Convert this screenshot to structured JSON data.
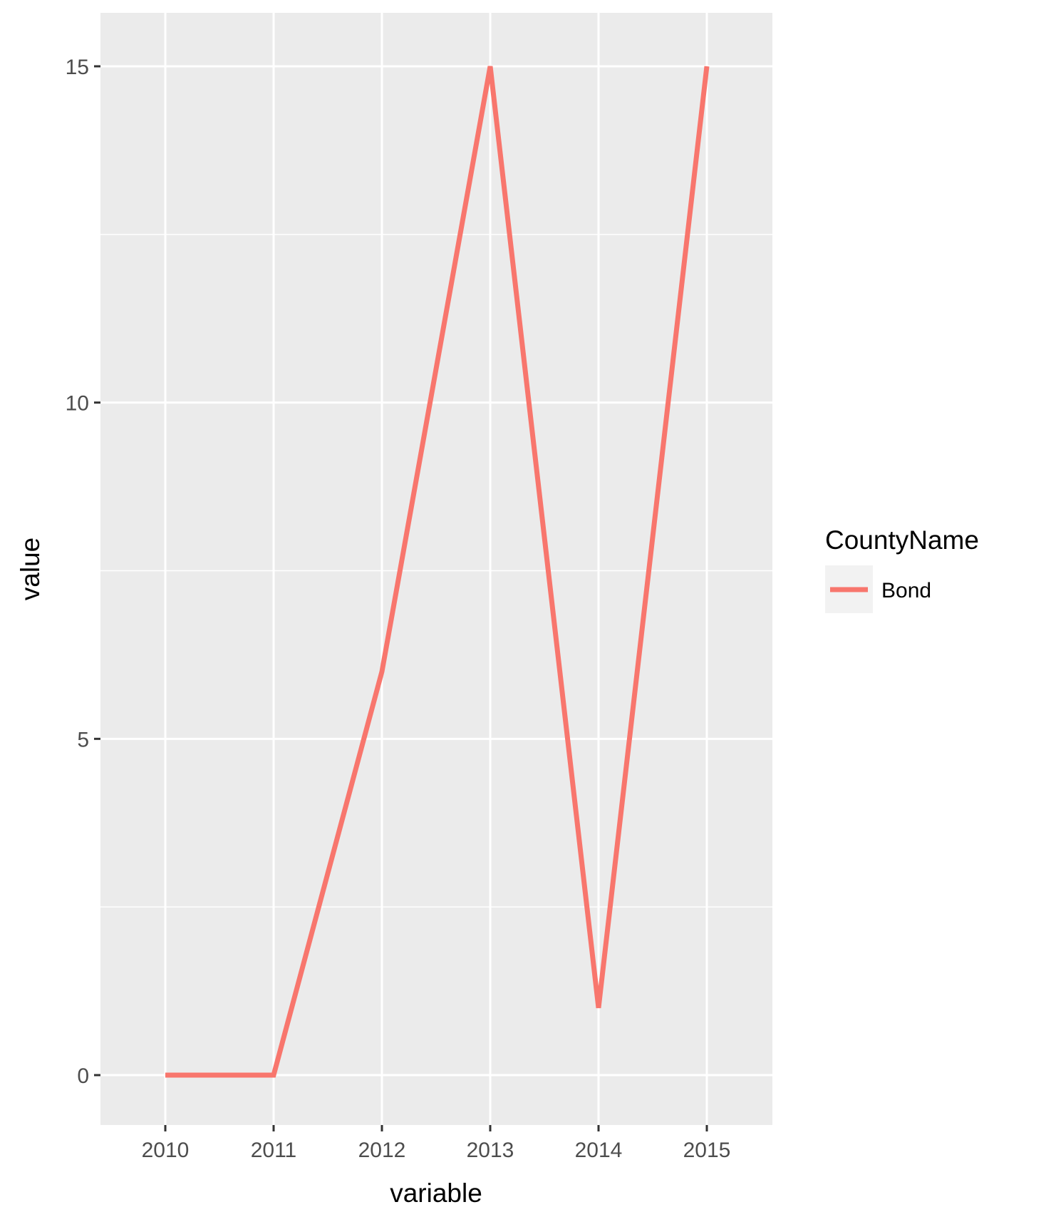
{
  "chart_data": {
    "type": "line",
    "categories": [
      "2010",
      "2011",
      "2012",
      "2013",
      "2014",
      "2015"
    ],
    "series": [
      {
        "name": "Bond",
        "values": [
          0,
          0,
          6,
          15,
          1,
          15
        ],
        "color": "#f8766d"
      }
    ],
    "xlabel": "variable",
    "ylabel": "value",
    "ylim": [
      -1,
      16
    ],
    "yticks": [
      0,
      5,
      10,
      15
    ],
    "ytick_labels": [
      "0",
      "5",
      "10",
      "15"
    ],
    "grid": true,
    "legend": {
      "title": "CountyName",
      "position": "right"
    },
    "colors": {
      "panel": "#ebebeb",
      "grid": "#ffffff",
      "tick": "#333333"
    }
  }
}
